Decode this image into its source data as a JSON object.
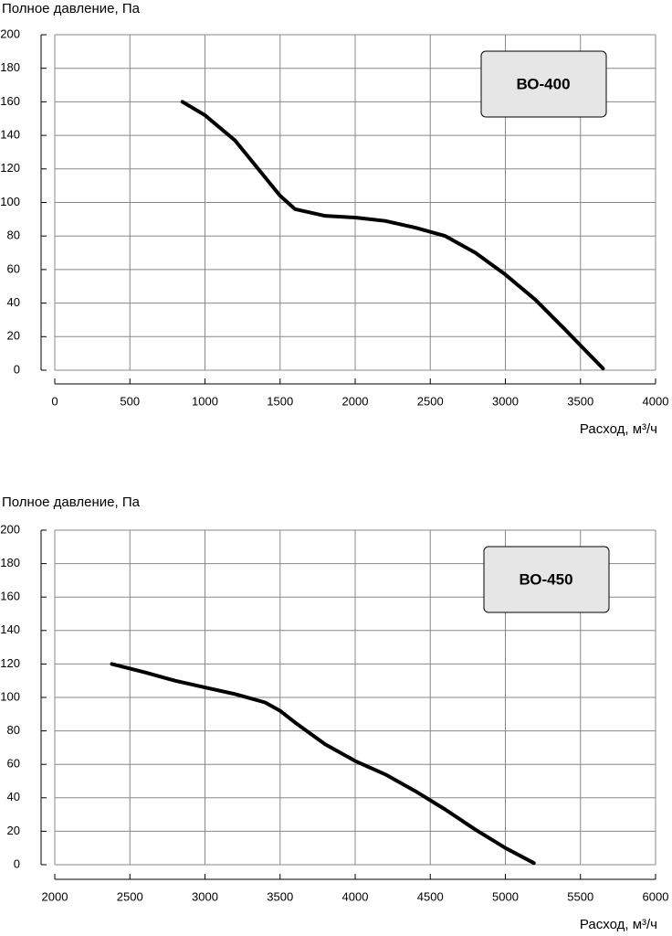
{
  "chart_data": [
    {
      "type": "line",
      "label": "ВО-400",
      "ylabel": "Полное давление, Па",
      "xlabel": "Расход, м³/ч",
      "x": [
        850,
        1000,
        1200,
        1400,
        1500,
        1600,
        1800,
        2000,
        2200,
        2400,
        2600,
        2800,
        3000,
        3200,
        3400,
        3650
      ],
      "values": [
        160,
        152,
        137,
        115,
        104,
        96,
        92,
        91,
        89,
        85,
        80,
        70,
        57,
        42,
        24,
        1
      ],
      "color": "#000000",
      "xlim": [
        0,
        4000
      ],
      "xticks": [
        0,
        500,
        1000,
        1500,
        2000,
        2500,
        3000,
        3500,
        4000
      ],
      "ylim": [
        0,
        200
      ],
      "yticks": [
        0,
        20,
        40,
        60,
        80,
        100,
        120,
        140,
        160,
        180,
        200
      ],
      "grid": true
    },
    {
      "type": "line",
      "label": "ВО-450",
      "ylabel": "Полное давление, Па",
      "xlabel": "Расход, м³/ч",
      "x": [
        2380,
        2600,
        2800,
        3000,
        3200,
        3400,
        3500,
        3600,
        3800,
        4000,
        4200,
        4400,
        4600,
        4800,
        5000,
        5190
      ],
      "values": [
        120,
        115,
        110,
        106,
        102,
        97,
        92,
        85,
        72,
        62,
        54,
        44,
        33,
        21,
        10,
        1
      ],
      "color": "#000000",
      "xlim": [
        2000,
        6000
      ],
      "xticks": [
        2000,
        2500,
        3000,
        3500,
        4000,
        4500,
        5000,
        5500,
        6000
      ],
      "ylim": [
        0,
        200
      ],
      "yticks": [
        0,
        20,
        40,
        60,
        80,
        100,
        120,
        140,
        160,
        180,
        200
      ],
      "grid": true
    }
  ]
}
